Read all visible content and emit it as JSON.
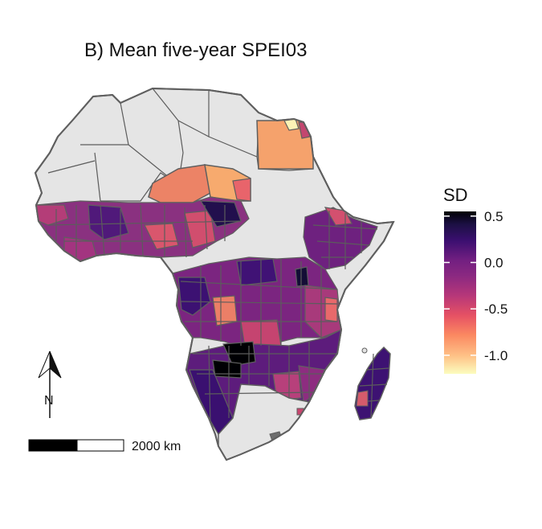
{
  "title": "B) Mean five-year SPEI03",
  "legend": {
    "title": "SD",
    "min": -1.2,
    "max": 0.55,
    "ticks": [
      {
        "value": 0.5,
        "label": "0.5"
      },
      {
        "value": 0.0,
        "label": "0.0"
      },
      {
        "value": -0.5,
        "label": "-0.5"
      },
      {
        "value": -1.0,
        "label": "-1.0"
      }
    ],
    "color_stops": [
      "#fcfdbf",
      "#fec287",
      "#fb8861",
      "#e65164",
      "#b73779",
      "#8c2981",
      "#721f81",
      "#3b0f70",
      "#1c1044",
      "#000004"
    ]
  },
  "scale_bar": {
    "label": "2000 km"
  },
  "north_arrow": {
    "label": "N"
  },
  "colors": {
    "no_data": "#e5e5e5",
    "border": "#5f5f5f",
    "sea": "#ffffff"
  }
}
